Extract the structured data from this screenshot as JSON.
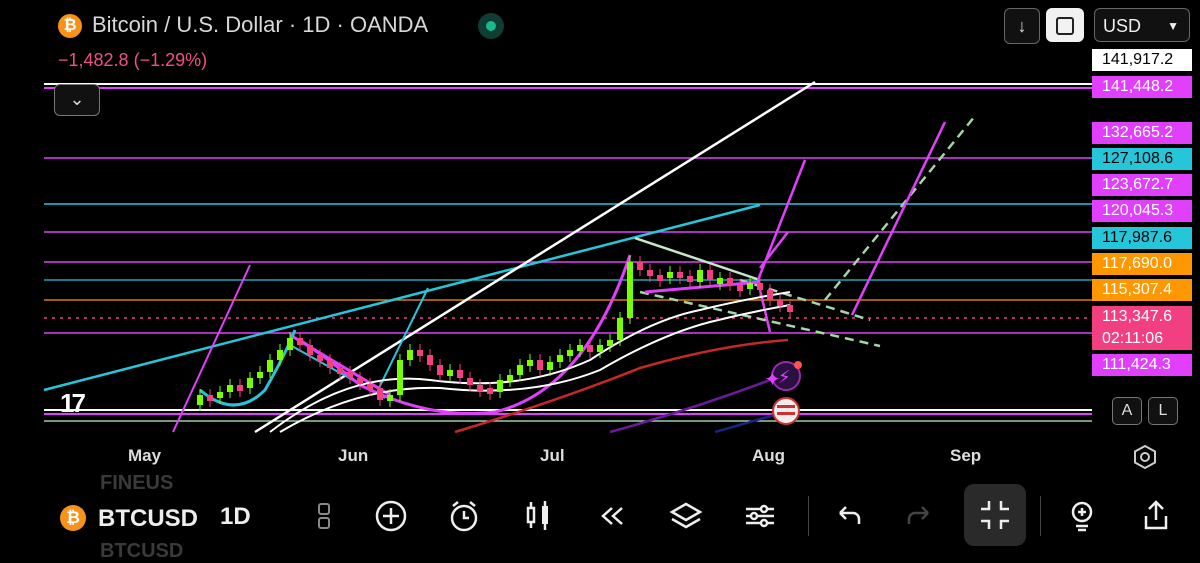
{
  "header": {
    "symbol_title": "Bitcoin / U.S. Dollar · 1D · OANDA",
    "change": "−1,482.8 (−1.29%)",
    "currency": "USD",
    "logo_glyph": "₿"
  },
  "price_labels": [
    {
      "text": "141,917.2",
      "bg": "#ffffff",
      "fg": "#000000"
    },
    {
      "text": "141,448.2",
      "bg": "#e040fb",
      "fg": "#ffffff"
    },
    {
      "text": "132,665.2",
      "bg": "#e040fb",
      "fg": "#ffffff"
    },
    {
      "text": "127,108.6",
      "bg": "#26c6da",
      "fg": "#000000"
    },
    {
      "text": "123,672.7",
      "bg": "#e040fb",
      "fg": "#ffffff"
    },
    {
      "text": "120,045.3",
      "bg": "#e040fb",
      "fg": "#ffffff"
    },
    {
      "text": "117,987.6",
      "bg": "#26c6da",
      "fg": "#000000"
    },
    {
      "text": "117,690.0",
      "bg": "#ff9800",
      "fg": "#ffffff"
    },
    {
      "text": "115,307.4",
      "bg": "#ff9800",
      "fg": "#ffffff"
    },
    {
      "text": "113,347.6",
      "bg": "#f23f82",
      "fg": "#ffffff"
    },
    {
      "text": "02:11:06",
      "bg": "#f23f82",
      "fg": "#ffffff"
    },
    {
      "text": "111,424.3",
      "bg": "#e040fb",
      "fg": "#ffffff"
    }
  ],
  "x_axis": [
    "May",
    "Jun",
    "Jul",
    "Aug",
    "Sep"
  ],
  "scale_buttons": {
    "auto": "A",
    "log": "L"
  },
  "toolbar": {
    "symbol": "BTCUSD",
    "interval": "1D",
    "ghost_above": "FINEUS",
    "ghost_below": "BTCUSD",
    "icons": [
      "drag-handle-icon",
      "add-icon",
      "alert-icon",
      "candles-icon",
      "replay-icon",
      "layers-icon",
      "settings-sliders-icon",
      "undo-icon",
      "redo-icon",
      "fullscreen-exit-icon",
      "idea-icon",
      "share-icon"
    ]
  },
  "colors": {
    "up": "#76ff03",
    "down": "#f23f82",
    "magenta": "#e040fb",
    "cyan": "#26c6da",
    "orange": "#ff9800"
  }
}
